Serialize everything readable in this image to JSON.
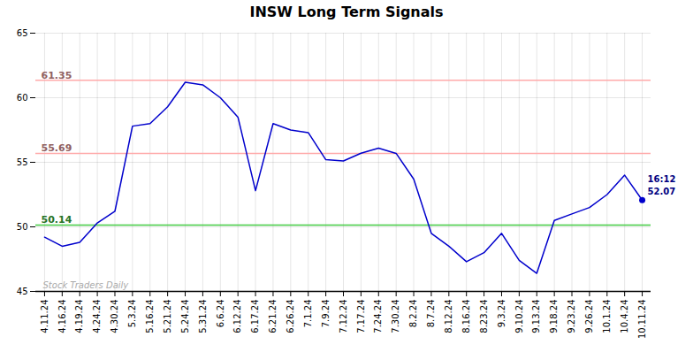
{
  "chart_data": {
    "type": "line",
    "title": "INSW Long Term Signals",
    "categories": [
      "4.11.24",
      "4.16.24",
      "4.19.24",
      "4.24.24",
      "4.30.24",
      "5.3.24",
      "5.16.24",
      "5.21.24",
      "5.24.24",
      "5.31.24",
      "6.6.24",
      "6.12.24",
      "6.17.24",
      "6.21.24",
      "6.26.24",
      "7.1.24",
      "7.9.24",
      "7.12.24",
      "7.17.24",
      "7.24.24",
      "7.30.24",
      "8.2.24",
      "8.7.24",
      "8.12.24",
      "8.16.24",
      "8.23.24",
      "9.3.24",
      "9.10.24",
      "9.13.24",
      "9.18.24",
      "9.23.24",
      "9.26.24",
      "10.1.24",
      "10.4.24",
      "10.11.24"
    ],
    "values": [
      49.2,
      48.5,
      48.8,
      50.3,
      51.2,
      57.8,
      58.0,
      59.3,
      61.2,
      61.0,
      60.0,
      58.5,
      52.8,
      58.0,
      57.5,
      57.3,
      55.2,
      55.1,
      55.7,
      56.1,
      55.69,
      53.7,
      49.5,
      48.5,
      47.3,
      48.0,
      49.5,
      47.4,
      46.4,
      50.5,
      51.0,
      51.5,
      52.5,
      54.0,
      52.07
    ],
    "color": "#0000cc",
    "ylim": [
      45,
      65
    ],
    "yticks": [
      45,
      50,
      55,
      60,
      65
    ],
    "grid": true,
    "reference_lines": [
      {
        "value": 61.35,
        "color": "#ffaaaa",
        "label": "61.35"
      },
      {
        "value": 55.69,
        "color": "#ffaaaa",
        "label": "55.69"
      },
      {
        "value": 50.14,
        "color": "#44cc44",
        "label": "50.14"
      }
    ],
    "annotations": [
      {
        "text": "16:12",
        "x": "10.11.24",
        "y": 52.07
      },
      {
        "text": "52.07",
        "x": "10.11.24",
        "y": 52.07
      }
    ],
    "watermark": "Stock Traders Daily"
  }
}
